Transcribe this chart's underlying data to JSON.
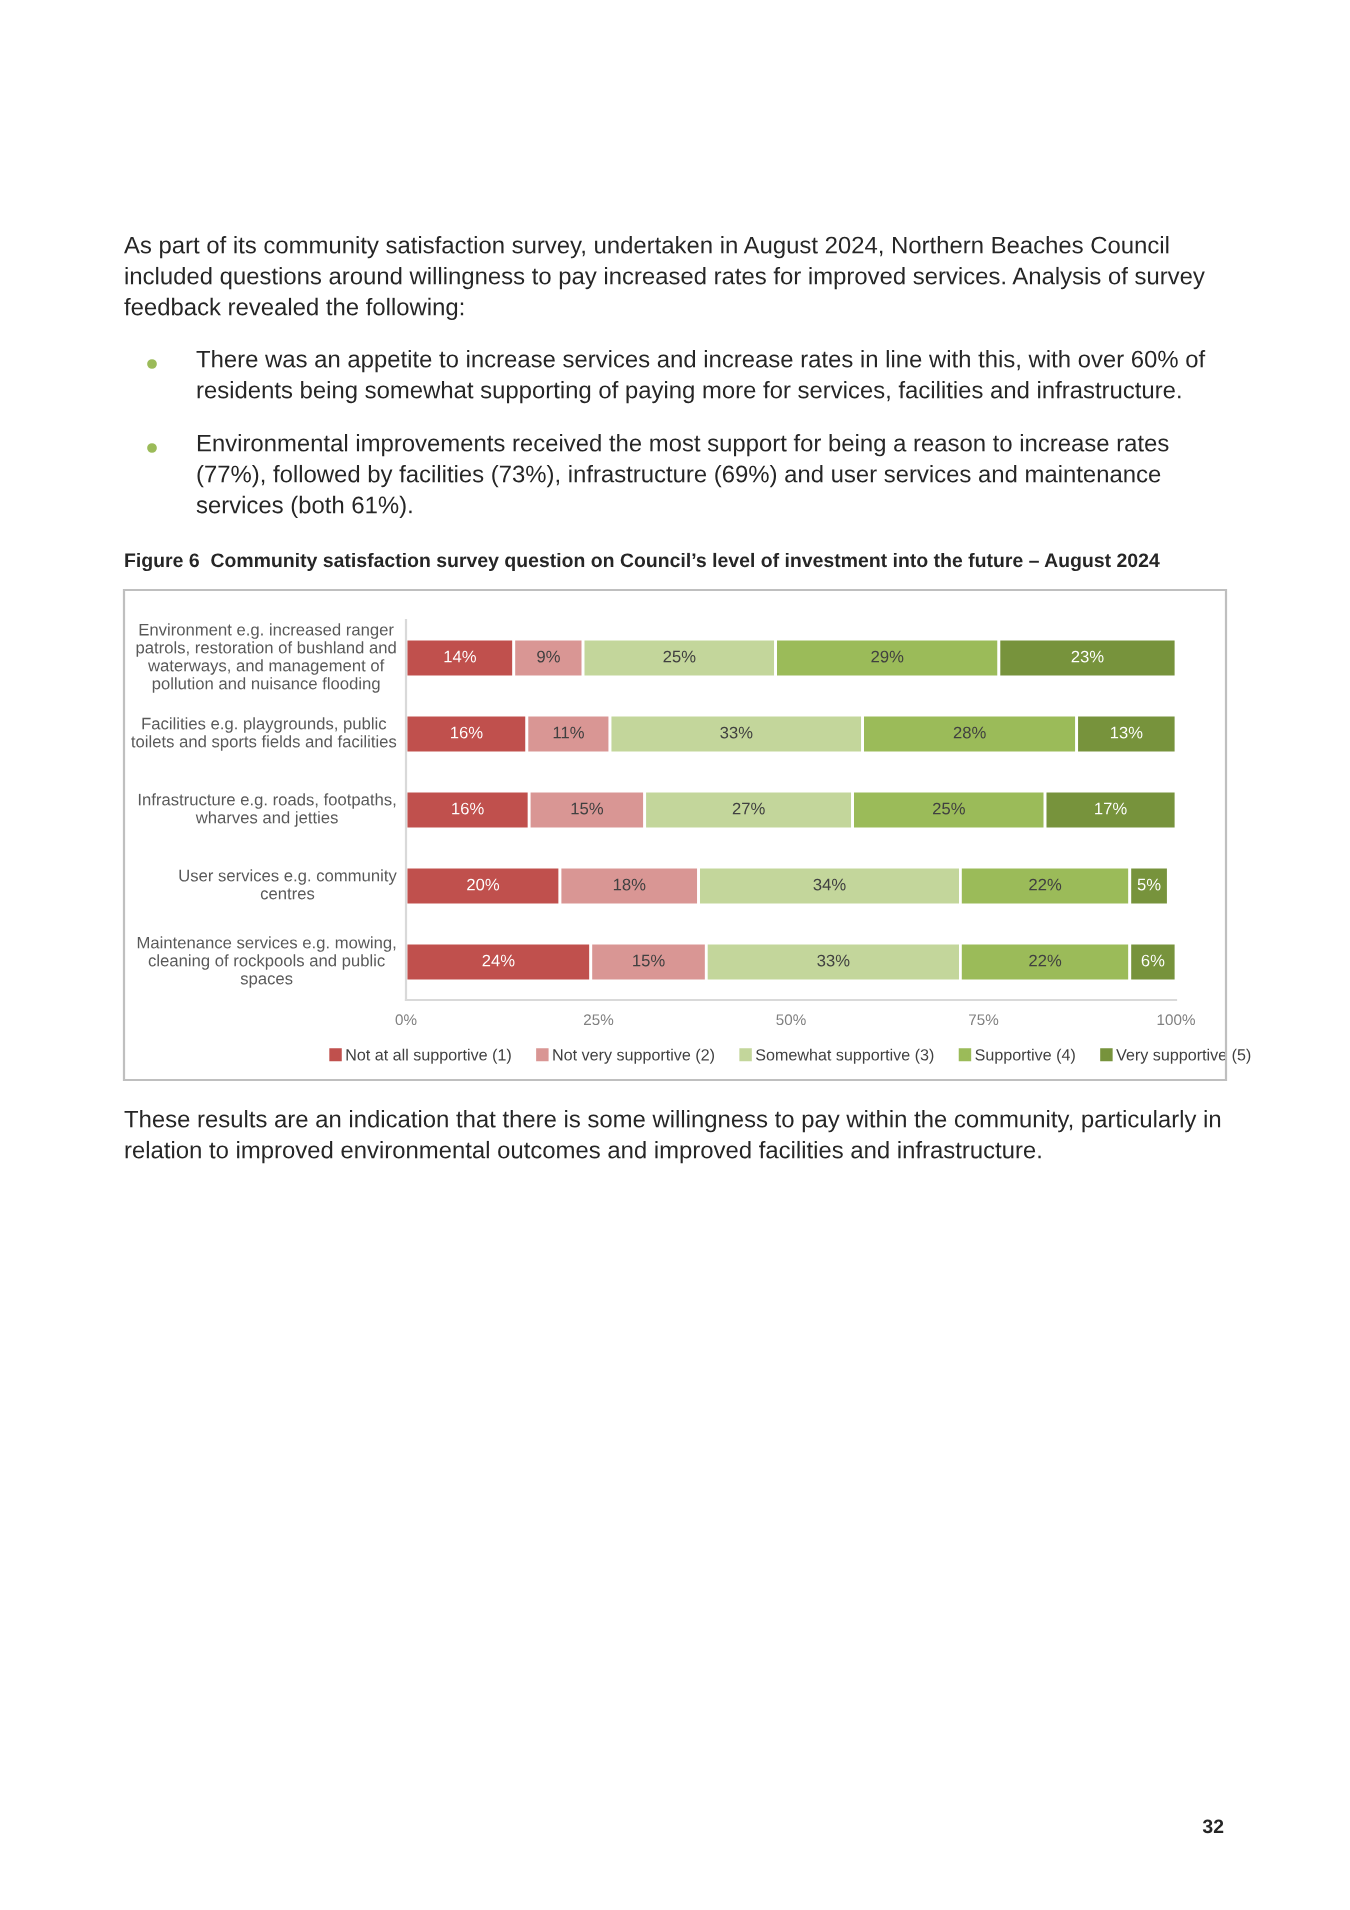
{
  "chart_data": {
    "type": "bar",
    "orientation": "horizontal",
    "stacked": true,
    "title": "Figure 6  Community satisfaction survey question on Council’s level of investment into the future – August 2024",
    "categories": [
      "Environment e.g. increased ranger patrols, restoration of bushland and waterways, and management of pollution and nuisance flooding",
      "Facilities e.g. playgrounds, public toilets and sports fields and facilities",
      "Infrastructure e.g. roads, footpaths, wharves and jetties",
      "User services e.g. community centres",
      "Maintenance services e.g. mowing, cleaning of rockpools and public spaces"
    ],
    "series": [
      {
        "name": "Not at all supportive (1)",
        "color": "#c0504d",
        "values": [
          14,
          15.7,
          16,
          20,
          24
        ],
        "value_labels": [
          "14%",
          "16%",
          "16%",
          "20%",
          "24%"
        ]
      },
      {
        "name": "Not very supportive (2)",
        "color": "#d99694",
        "values": [
          9,
          10.8,
          15,
          18,
          15
        ],
        "value_labels": [
          "9%",
          "11%",
          "15%",
          "18%",
          "15%"
        ]
      },
      {
        "name": "Somewhat supportive (3)",
        "color": "#c3d69b",
        "values": [
          25,
          32.8,
          27,
          34,
          33
        ],
        "value_labels": [
          "25%",
          "33%",
          "27%",
          "34%",
          "33%"
        ]
      },
      {
        "name": "Supportive (4)",
        "color": "#9bbb59",
        "values": [
          29,
          27.8,
          25,
          22,
          22
        ],
        "value_labels": [
          "29%",
          "28%",
          "25%",
          "22%",
          "22%"
        ]
      },
      {
        "name": "Very supportive (5)",
        "color": "#77933c",
        "values": [
          23,
          12.9,
          17,
          5,
          6
        ],
        "value_labels": [
          "23%",
          "13%",
          "17%",
          "5%",
          "6%"
        ]
      }
    ],
    "xlim": [
      0,
      100
    ],
    "xticks": [
      {
        "value": 0,
        "label": "0%"
      },
      {
        "value": 25,
        "label": "25%"
      },
      {
        "value": 50,
        "label": "50%"
      },
      {
        "value": 75,
        "label": "75%"
      },
      {
        "value": 100,
        "label": "100%"
      }
    ],
    "grid": false,
    "legend": "bottom",
    "annotations": [
      "As part of its community satisfaction survey, undertaken in August 2024, Northern Beaches Council included questions around willingness to pay increased rates for improved services. Analysis of survey feedback revealed the following:",
      "There was an appetite to increase services and increase rates in line with this, with over 60% of residents being somewhat supporting of paying more for services, facilities and infrastructure.",
      "Environmental improvements received the most support for being a reason to increase rates (77%), followed by facilities (73%), infrastructure (69%) and user services and maintenance services (both 61%).",
      "These results are an indication that there is some willingness to pay within the community, particularly in relation to improved environmental outcomes and improved facilities and infrastructure.",
      "32"
    ]
  }
}
